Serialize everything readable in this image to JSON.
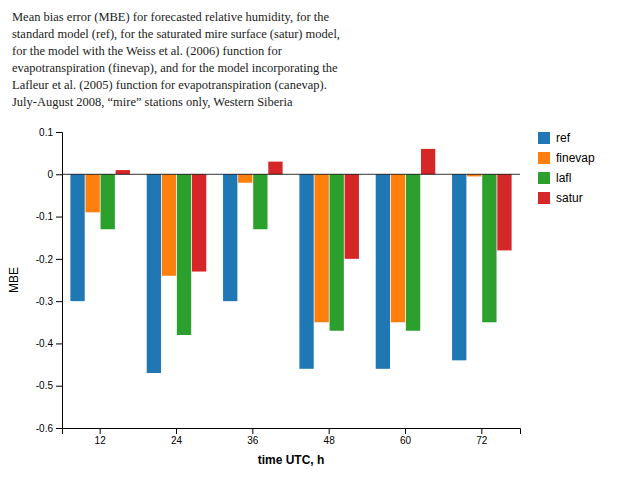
{
  "chart_data": {
    "type": "bar",
    "title": "Mean bias error (MBE) for forecasted relative humidity, for the\nstandard model (ref), for the saturated mire surface (satur) model,\nfor the model with the Weiss et al. (2006) function for\nevapotranspiration (finevap), and for the model incorporating the\nLafleur et al. (2005) function for evapotranspiration (canevap).\nJuly-August 2008, “mire” stations only, Western Siberia",
    "x_label": "time UTC, h",
    "y_label": "MBE",
    "categories": [
      "12",
      "24",
      "36",
      "48",
      "60",
      "72"
    ],
    "series": [
      {
        "name": "ref",
        "values": [
          -0.3,
          -0.47,
          -0.3,
          -0.46,
          -0.46,
          -0.44
        ]
      },
      {
        "name": "finevap",
        "values": [
          -0.09,
          -0.24,
          -0.02,
          -0.35,
          -0.35,
          -0.005
        ]
      },
      {
        "name": "lafl",
        "values": [
          -0.13,
          -0.38,
          -0.13,
          -0.37,
          -0.37,
          -0.35
        ]
      },
      {
        "name": "satur",
        "values": [
          0.01,
          -0.23,
          0.03,
          -0.2,
          0.06,
          -0.18
        ]
      }
    ],
    "ylim": [
      -0.6,
      0.1
    ],
    "yticks": [
      -0.6,
      -0.5,
      -0.4,
      -0.3,
      -0.2,
      -0.1,
      0,
      0.1
    ],
    "grid": false,
    "legend": "right"
  }
}
